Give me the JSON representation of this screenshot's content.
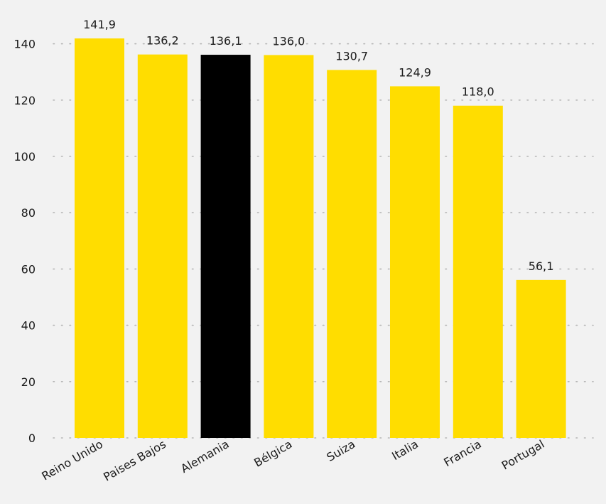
{
  "chart_data": {
    "type": "bar",
    "categories": [
      "Reino Unido",
      "Paises Bajos",
      "Alemania",
      "Bélgica",
      "Suiza",
      "Italia",
      "Francia",
      "Portugal"
    ],
    "values": [
      141.9,
      136.2,
      136.1,
      136.0,
      130.7,
      124.9,
      118.0,
      56.1
    ],
    "value_labels": [
      "141,9",
      "136,2",
      "136,1",
      "136,0",
      "130,7",
      "124,9",
      "118,0",
      "56,1"
    ],
    "highlight_category": "Alemania",
    "title": "",
    "xlabel": "",
    "ylabel": "",
    "ylim": [
      0,
      145
    ],
    "yticks": [
      0,
      20,
      40,
      60,
      80,
      100,
      120,
      140
    ],
    "grid": true,
    "colors": {
      "bar": "#FFDD00",
      "highlight": "#000000",
      "background": "#F2F2F2",
      "grid": "#B5B5B5"
    }
  }
}
